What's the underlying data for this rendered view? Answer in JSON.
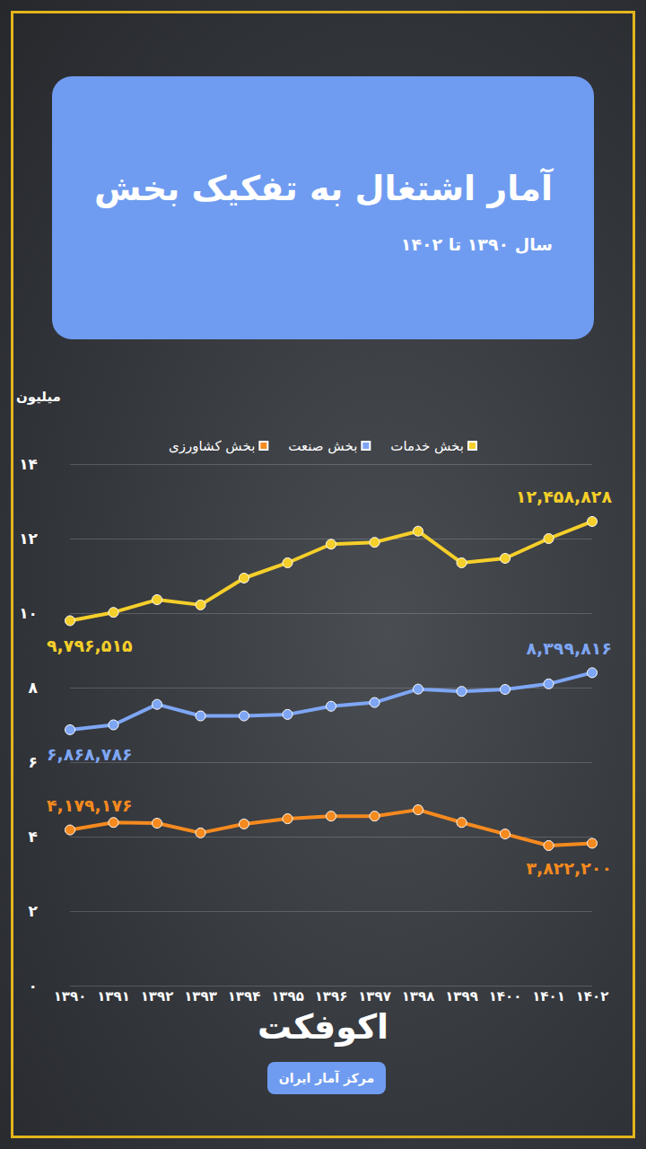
{
  "chart_data": {
    "type": "line",
    "title": "آمار اشتغال به تفکیک بخش",
    "subtitle": "سال ۱۳۹۰ تا ۱۴۰۲",
    "y_label": "میلیون",
    "brand": "اکوفکت",
    "source": "مرکز آمار ایران",
    "categories": [
      "۱۳۹۰",
      "۱۳۹۱",
      "۱۳۹۲",
      "۱۳۹۳",
      "۱۳۹۴",
      "۱۳۹۵",
      "۱۳۹۶",
      "۱۳۹۷",
      "۱۳۹۸",
      "۱۳۹۹",
      "۱۴۰۰",
      "۱۴۰۱",
      "۱۴۰۲"
    ],
    "series": [
      {
        "name": "بخش خدمات",
        "color": "#f5cf2a",
        "values": [
          9.796515,
          10.02,
          10.36,
          10.22,
          10.94,
          11.35,
          11.85,
          11.9,
          12.2,
          11.35,
          11.47,
          12.0,
          12.458828
        ]
      },
      {
        "name": "بخش صنعت",
        "color": "#7ea6f5",
        "values": [
          6.868786,
          7.0,
          7.55,
          7.24,
          7.24,
          7.28,
          7.5,
          7.6,
          7.96,
          7.9,
          7.95,
          8.1,
          8.399816
        ]
      },
      {
        "name": "بخش کشاورزی",
        "color": "#f58a1f",
        "values": [
          4.179176,
          4.38,
          4.36,
          4.1,
          4.34,
          4.48,
          4.55,
          4.55,
          4.72,
          4.38,
          4.07,
          3.76,
          3.8222
        ]
      }
    ],
    "annotations": [
      {
        "series": "بخش خدمات",
        "x": "۱۳۹۰",
        "y": 9.796515,
        "text": "۹,۷۹۶,۵۱۵"
      },
      {
        "series": "بخش خدمات",
        "x": "۱۴۰۲",
        "y": 12.458828,
        "text": "۱۲,۴۵۸,۸۲۸"
      },
      {
        "series": "بخش صنعت",
        "x": "۱۳۹۰",
        "y": 6.868786,
        "text": "۶,۸۶۸,۷۸۶"
      },
      {
        "series": "بخش صنعت",
        "x": "۱۴۰۲",
        "y": 8.399816,
        "text": "۸,۳۹۹,۸۱۶"
      },
      {
        "series": "بخش کشاورزی",
        "x": "۱۳۹۰",
        "y": 4.179176,
        "text": "۴,۱۷۹,۱۷۶"
      },
      {
        "series": "بخش کشاورزی",
        "x": "۱۴۰۲",
        "y": 3.8222,
        "text": "۳,۸۲۲,۲۰۰"
      }
    ],
    "ylim": [
      0,
      14
    ],
    "yticks": [
      {
        "value": 0,
        "label": "۰"
      },
      {
        "value": 2,
        "label": "۲"
      },
      {
        "value": 4,
        "label": "۴"
      },
      {
        "value": 6,
        "label": "۶"
      },
      {
        "value": 8,
        "label": "۸"
      },
      {
        "value": 10,
        "label": "۱۰"
      },
      {
        "value": 12,
        "label": "۱۲"
      },
      {
        "value": 14,
        "label": "۱۴"
      }
    ],
    "grid": true,
    "legend": "top",
    "marker": "circle"
  }
}
